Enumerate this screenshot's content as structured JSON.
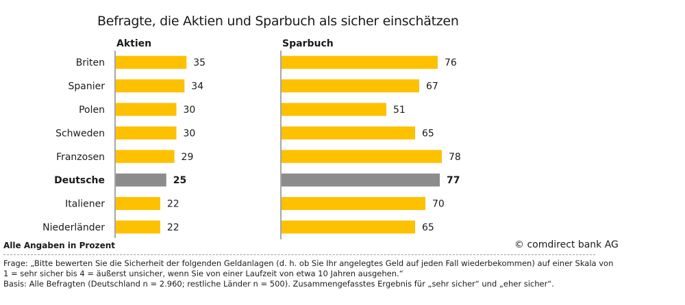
{
  "title": "Befragte, die Aktien und Sparbuch als sicher einschätzen",
  "colors": {
    "bar": "#FDC100",
    "highlight": "#8C8C8C",
    "axis": "#4d4d4d"
  },
  "chart_data": {
    "type": "bar",
    "orientation": "horizontal",
    "categories": [
      "Briten",
      "Spanier",
      "Polen",
      "Schweden",
      "Franzosen",
      "Deutsche",
      "Italiener",
      "Niederländer"
    ],
    "highlight_category": "Deutsche",
    "panels": [
      {
        "title": "Aktien",
        "values": [
          35,
          34,
          30,
          30,
          29,
          25,
          22,
          22
        ]
      },
      {
        "title": "Sparbuch",
        "values": [
          76,
          67,
          51,
          65,
          78,
          77,
          70,
          65
        ]
      }
    ],
    "unit": "Prozent"
  },
  "footer": {
    "scale_note": "Alle Angaben in Prozent",
    "credit": "© comdirect bank AG",
    "question_line1": "Frage: „Bitte bewerten Sie die Sicherheit der folgenden Geldanlagen (d. h. ob Sie Ihr angelegtes Geld auf jeden Fall wiederbekommen) auf einer Skala von",
    "question_line2": "1 = sehr sicher bis 4 = äußerst unsicher, wenn Sie von einer Laufzeit von etwa 10 Jahren ausgehen.“",
    "basis": "Basis: Alle Befragten (Deutschland n = 2.960; restliche Länder n = 500). Zusammengefasstes Ergebnis für „sehr sicher“ und „eher sicher“."
  }
}
